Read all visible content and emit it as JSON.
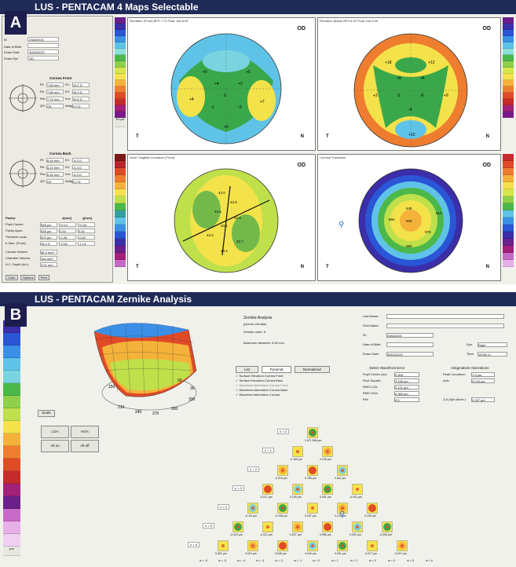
{
  "panelA": {
    "letter": "A",
    "title": "LUS - PENTACAM  4 Maps Selectable",
    "eye": "OD",
    "side_left": "T",
    "side_right": "N",
    "scale_top": "5.0 µm",
    "fields": [
      {
        "label": "ID",
        "value": "2384/2021"
      },
      {
        "label": "Date of Birth",
        "value": ""
      },
      {
        "label": "Exam Date",
        "value": "30/04/2021"
      },
      {
        "label": "Exam Eye",
        "value": "OD"
      }
    ],
    "cornea_front": {
      "title": "Cornea Front",
      "rows": [
        {
          "l1": "Rf:",
          "v1": "7.83 mm",
          "l2": "K1:",
          "v2": "43.1 D"
        },
        {
          "l1": "Rs:",
          "v1": "7.66 mm",
          "l2": "K2:",
          "v2": "44.0 D"
        },
        {
          "l1": "Rm:",
          "v1": "7.75 mm",
          "l2": "Km:",
          "v2": "43.6 D"
        },
        {
          "l1": "QS:",
          "v1": "OK",
          "l2": "Astig:",
          "v2": "0.9 D"
        }
      ]
    },
    "cornea_back": {
      "title": "Cornea Back",
      "rows": [
        {
          "l1": "Rf:",
          "v1": "6.44 mm",
          "l2": "K1:",
          "v2": "-6.2 D"
        },
        {
          "l1": "Rs:",
          "v1": "6.21 mm",
          "l2": "K2:",
          "v2": "-6.4 D"
        },
        {
          "l1": "Rm:",
          "v1": "6.32 mm",
          "l2": "Km:",
          "v2": "-6.3 D"
        },
        {
          "l1": "QS:",
          "v1": "OK",
          "l2": "Astig:",
          "v2": "0.2 D"
        }
      ]
    },
    "pachy": {
      "headers": [
        "Pachy:",
        "x[mm]",
        "y[mm]"
      ],
      "rows": [
        {
          "label": "Pupil Center:",
          "v": "538 µm",
          "x": "+0.14",
          "y": "+0.04"
        },
        {
          "label": "Pachy Apex:",
          "v": "535 µm",
          "x": "0.00",
          "y": "0.00"
        },
        {
          "label": "Thinnest Locat.:",
          "v": "529 µm",
          "x": "-0.48",
          "y": "-0.62"
        },
        {
          "label": "K Max. (Front):",
          "v": "45.2 D",
          "x": "+0.62",
          "y": "-1.13"
        }
      ]
    },
    "extras": [
      {
        "label": "Cornea Volume:",
        "value": "58.9 mm³"
      },
      {
        "label": "Chamber Volume:",
        "value": "184 mm³"
      },
      {
        "label": "A.C. Depth (Int.):",
        "value": "3.01 mm"
      }
    ],
    "buttons": [
      "Color",
      "Options",
      "Print"
    ],
    "maps": [
      {
        "title": "Elevation (Front)  BFS 7.72 Float, Dia 8.00",
        "values": [
          "+9",
          "+5",
          "+4",
          "+2",
          "0",
          "-1",
          "-3",
          "+4",
          "+7",
          "+9"
        ]
      },
      {
        "title": "Elevation (Back)  BFS 6.32 Float, Dia 8.00",
        "values": [
          "+18",
          "+12",
          "+8",
          "+4",
          "-2",
          "-6",
          "-4",
          "+3",
          "+9",
          "+15"
        ]
      },
      {
        "title": "Axial / Sagittal Curvature (Front)",
        "values": [
          "44.0",
          "43.8",
          "43.5",
          "43.3",
          "43.1",
          "43.4",
          "43.7",
          "44.1"
        ]
      },
      {
        "title": "Corneal Thickness",
        "values": [
          "530",
          "545",
          "560",
          "575",
          "590",
          "610"
        ]
      }
    ]
  },
  "panelB": {
    "letter": "B",
    "title": "LUS - PENTACAM  Zernike Analysis",
    "scale_label": "µm",
    "scale_button": "Scale",
    "analysis_title": "Zernike Analysis",
    "analysis_sub": "(plot for Zernike)",
    "zernike_order": "Zernike order: 6",
    "diameter": "Maximum diameter: 6.00 mm",
    "patient_fields": [
      {
        "label": "Last Name:",
        "value": ""
      },
      {
        "label": "First Name:",
        "value": ""
      },
      {
        "label": "ID:",
        "value": "2384/2021"
      },
      {
        "label": "Date of Birth:",
        "value": ""
      },
      {
        "label": "Exam Date:",
        "value": "30/04/2021"
      }
    ],
    "eye_label": "Eye:",
    "eye_value": "Right",
    "time_label": "Time:",
    "time_value": "15:08:14",
    "tabs": [
      "List",
      "Pyramid",
      "Normalized"
    ],
    "options": [
      "Surface Elevation Cornea Front",
      "Surface Elevation Cornea Back",
      "Wavefront Aberration Cornea Front",
      "Wavefront Aberration Cornea Back",
      "Wavefront Aberration Cornea"
    ],
    "wavefront_title": "Select Wavefront Error",
    "wavefront": [
      {
        "label": "Pupil Center (Ax):",
        "value": "0.908"
      },
      {
        "label": "Root Square:",
        "value": "2.196 µm"
      },
      {
        "label": "RMS LOA:",
        "value": "2.121 µm"
      },
      {
        "label": "RMS HOA:",
        "value": "0.365 µm"
      },
      {
        "label": "Ref:",
        "value": "0.9"
      }
    ],
    "astig_title": "Astigmatism Aberrations",
    "astig": [
      {
        "label": "Peak Curvature:",
        "value": "1.6 µm"
      },
      {
        "label": "Axis:",
        "value": "21.64 µm"
      },
      {
        "label": "Z-8 (Sph.Aberr.):",
        "value": "0.157 µm"
      }
    ],
    "small_buttons": [
      "LOA",
      "HOA",
      "All on",
      "All off"
    ],
    "row_labels": [
      "n = 0",
      "n = 1",
      "n = 2",
      "n = 3",
      "n = 4",
      "n = 5",
      "n = 6"
    ],
    "pyramid": [
      [
        "1.671.854 µm"
      ],
      [
        "-0.169 µm",
        "0.196 µm"
      ],
      [
        "-0.016 µm",
        "0.788 µm",
        "0.011 µm"
      ],
      [
        "-0.017 µm",
        "0.109 µm",
        "0.001 µm",
        "-0.001 µm"
      ],
      [
        "-0.111 µm",
        "-0.138 µm",
        "0.157 µm",
        "0.131 µm",
        "0.190 µm"
      ],
      [
        "-0.023 µm",
        "-0.021 µm",
        "0.027 µm",
        "0.056 µm",
        "0.032 µm",
        "-0.008 µm"
      ],
      [
        "0.001 µm",
        "0.010 µm",
        "0.008 µm",
        "0.044 µm",
        "0.001 µm",
        "-0.017 µm",
        "-0.007 µm"
      ]
    ],
    "bottom_n": [
      "m = -6",
      "m = -5",
      "m = -4",
      "m = -3",
      "m = -2",
      "m = -1",
      "m = 0",
      "m = 1",
      "m = 2",
      "m = 3",
      "m = 4",
      "m = 5",
      "m = 6"
    ],
    "axis3d": [
      "150",
      "210",
      "240",
      "270",
      "300",
      "330",
      "60",
      "30"
    ]
  },
  "colors": {
    "titlebar": "#1f2a57",
    "map_green": "#3aa84a",
    "map_yellow": "#f4e24a",
    "map_blue": "#3a7bd5",
    "map_cyan": "#7ad4e0",
    "map_red": "#d63a2a"
  }
}
